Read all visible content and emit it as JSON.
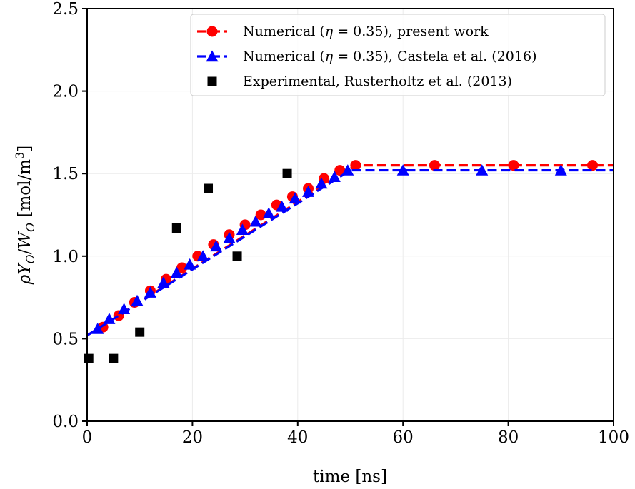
{
  "chart_data": {
    "type": "line",
    "xlabel": "time [ns]",
    "ylabel_parts": {
      "rho": "ρ",
      "Y": "Y",
      "sub1": "O",
      "slash": "/",
      "W": "W",
      "sub2": "O",
      "unit_open": " [mol/m",
      "unit_sup": "3",
      "unit_close": "]"
    },
    "xlim": [
      0,
      100
    ],
    "ylim": [
      0,
      2.5
    ],
    "x_ticks": [
      "0",
      "20",
      "40",
      "60",
      "80",
      "100"
    ],
    "y_ticks": [
      "0.0",
      "0.5",
      "1.0",
      "1.5",
      "2.0",
      "2.5"
    ],
    "grid": true,
    "legend_position": "top-right",
    "series": [
      {
        "name": "Numerical (η = 0.35), present work",
        "legend_parts": [
          "Numerical (",
          "η",
          " = 0.35), present work"
        ],
        "color": "#ff0000",
        "marker": "circle",
        "linestyle": "dashed",
        "line": [
          [
            0,
            0.52
          ],
          [
            51,
            1.55
          ],
          [
            100,
            1.55
          ]
        ],
        "markers": [
          [
            3,
            0.57
          ],
          [
            6,
            0.64
          ],
          [
            9,
            0.72
          ],
          [
            12,
            0.79
          ],
          [
            15,
            0.86
          ],
          [
            18,
            0.93
          ],
          [
            21,
            1.0
          ],
          [
            24,
            1.07
          ],
          [
            27,
            1.13
          ],
          [
            30,
            1.19
          ],
          [
            33,
            1.25
          ],
          [
            36,
            1.31
          ],
          [
            39,
            1.36
          ],
          [
            42,
            1.41
          ],
          [
            45,
            1.47
          ],
          [
            48,
            1.52
          ],
          [
            51,
            1.55
          ],
          [
            66,
            1.55
          ],
          [
            81,
            1.55
          ],
          [
            96,
            1.55
          ]
        ]
      },
      {
        "name": "Numerical (η = 0.35), Castela et al. (2016)",
        "legend_parts": [
          "Numerical (",
          "η",
          " = 0.35), Castela et al. (2016)"
        ],
        "color": "#0000ff",
        "marker": "triangle",
        "linestyle": "dashed",
        "line": [
          [
            0,
            0.52
          ],
          [
            50,
            1.52
          ],
          [
            100,
            1.52
          ]
        ],
        "markers": [
          [
            2,
            0.56
          ],
          [
            4.2,
            0.62
          ],
          [
            7,
            0.68
          ],
          [
            9.5,
            0.73
          ],
          [
            12,
            0.78
          ],
          [
            14.5,
            0.84
          ],
          [
            17,
            0.9
          ],
          [
            19.5,
            0.95
          ],
          [
            22,
            1.0
          ],
          [
            24.5,
            1.06
          ],
          [
            27,
            1.11
          ],
          [
            29.5,
            1.16
          ],
          [
            32,
            1.21
          ],
          [
            34.5,
            1.26
          ],
          [
            37,
            1.3
          ],
          [
            39.5,
            1.35
          ],
          [
            42,
            1.39
          ],
          [
            44.5,
            1.44
          ],
          [
            47,
            1.48
          ],
          [
            49.5,
            1.52
          ],
          [
            60,
            1.52
          ],
          [
            75,
            1.52
          ],
          [
            90,
            1.52
          ]
        ]
      },
      {
        "name": "Experimental, Rusterholtz et al. (2013)",
        "legend_parts": [
          "Experimental, Rusterholtz et al. (2013)"
        ],
        "color": "#000000",
        "marker": "square",
        "linestyle": "none",
        "markers": [
          [
            0.3,
            0.38
          ],
          [
            5,
            0.38
          ],
          [
            10,
            0.54
          ],
          [
            17,
            1.17
          ],
          [
            23,
            1.41
          ],
          [
            28.5,
            1.0
          ],
          [
            38,
            1.5
          ]
        ]
      }
    ]
  }
}
